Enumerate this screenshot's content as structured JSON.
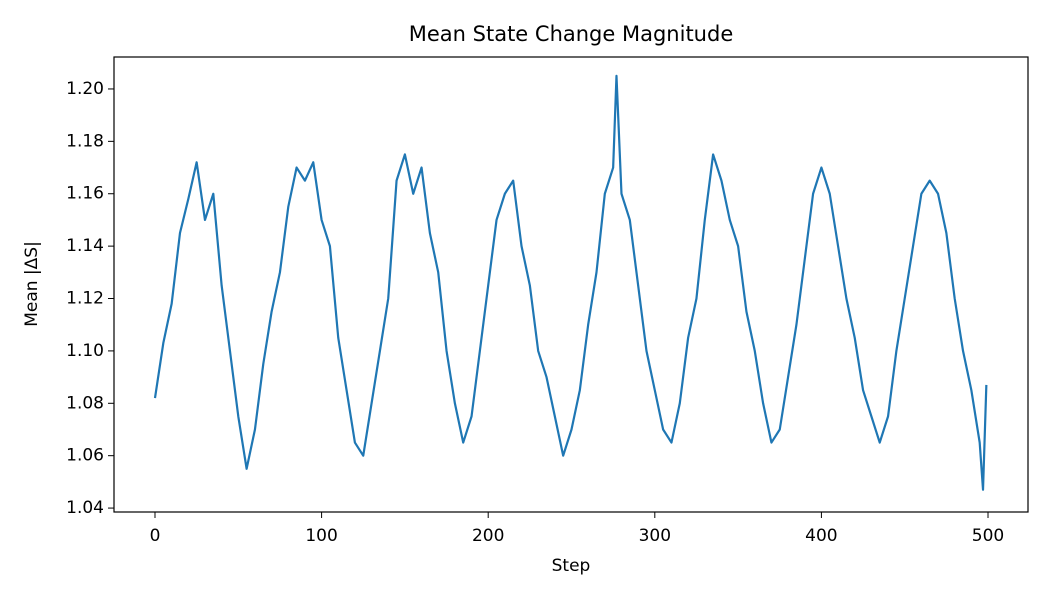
{
  "chart_data": {
    "type": "line",
    "title": "Mean State Change Magnitude",
    "x_label": "Step",
    "y_label": "Mean |ΔS|",
    "x": [
      0,
      5,
      10,
      15,
      20,
      25,
      30,
      35,
      40,
      45,
      50,
      55,
      60,
      65,
      70,
      75,
      80,
      85,
      90,
      95,
      100,
      105,
      110,
      115,
      120,
      125,
      130,
      135,
      140,
      145,
      150,
      155,
      160,
      165,
      170,
      175,
      180,
      185,
      190,
      195,
      200,
      205,
      210,
      215,
      220,
      225,
      230,
      235,
      240,
      245,
      250,
      255,
      260,
      265,
      270,
      275,
      277,
      280,
      285,
      290,
      295,
      300,
      305,
      310,
      315,
      320,
      325,
      330,
      335,
      340,
      345,
      350,
      355,
      360,
      365,
      370,
      375,
      380,
      385,
      390,
      395,
      400,
      405,
      410,
      415,
      420,
      425,
      430,
      435,
      440,
      445,
      450,
      455,
      460,
      465,
      470,
      475,
      480,
      485,
      490,
      495,
      497,
      499
    ],
    "series": [
      {
        "name": "Mean |ΔS|",
        "color": "#1f77b4",
        "values": [
          1.082,
          1.103,
          1.118,
          1.145,
          1.158,
          1.172,
          1.15,
          1.16,
          1.125,
          1.1,
          1.075,
          1.055,
          1.07,
          1.095,
          1.115,
          1.13,
          1.155,
          1.17,
          1.165,
          1.172,
          1.15,
          1.14,
          1.105,
          1.085,
          1.065,
          1.06,
          1.08,
          1.1,
          1.12,
          1.165,
          1.175,
          1.16,
          1.17,
          1.145,
          1.13,
          1.1,
          1.08,
          1.065,
          1.075,
          1.1,
          1.125,
          1.15,
          1.16,
          1.165,
          1.14,
          1.125,
          1.1,
          1.09,
          1.075,
          1.06,
          1.07,
          1.085,
          1.11,
          1.13,
          1.16,
          1.17,
          1.205,
          1.16,
          1.15,
          1.125,
          1.1,
          1.085,
          1.07,
          1.065,
          1.08,
          1.105,
          1.12,
          1.15,
          1.175,
          1.165,
          1.15,
          1.14,
          1.115,
          1.1,
          1.08,
          1.065,
          1.07,
          1.09,
          1.11,
          1.135,
          1.16,
          1.17,
          1.16,
          1.14,
          1.12,
          1.105,
          1.085,
          1.075,
          1.065,
          1.075,
          1.1,
          1.12,
          1.14,
          1.16,
          1.165,
          1.16,
          1.145,
          1.12,
          1.1,
          1.085,
          1.065,
          1.047,
          1.087
        ]
      }
    ],
    "xlim": [
      -24.6,
      524
    ],
    "ylim": [
      1.0385,
      1.2122
    ],
    "xticks": [
      0,
      100,
      200,
      300,
      400,
      500
    ],
    "yticks": [
      1.04,
      1.06,
      1.08,
      {
        "value": 1.1,
        "label": "1.10"
      },
      1.12,
      1.14,
      1.16,
      1.18,
      {
        "value": 1.2,
        "label": "1.20"
      }
    ]
  }
}
